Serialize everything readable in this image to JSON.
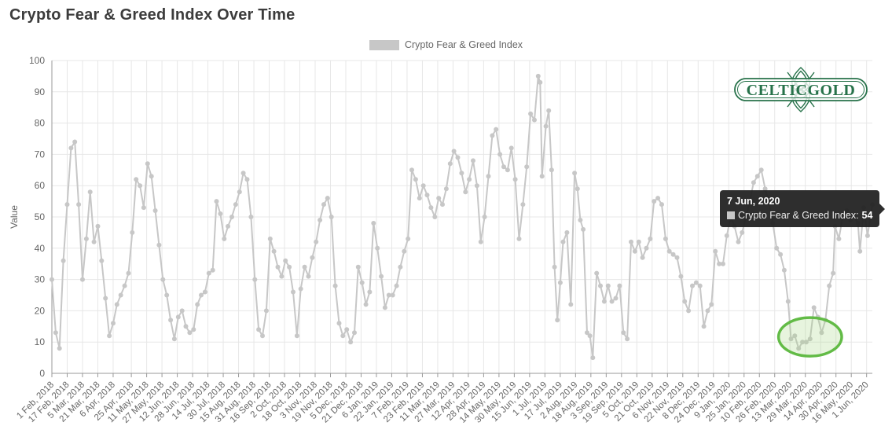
{
  "title": "Crypto Fear & Greed Index Over Time",
  "legend": {
    "label": "Crypto Fear & Greed Index"
  },
  "y_axis": {
    "title": "Value"
  },
  "tooltip": {
    "date": "7 Jun, 2020",
    "series_label": "Crypto Fear & Greed Index:",
    "value": "54"
  },
  "logo": {
    "text": "CELTICGOLD"
  },
  "colors": {
    "series": "#c7c7c7",
    "grid": "#e7e7e7",
    "axis": "#999999",
    "tick_label": "#666666",
    "title": "#3c3c3c",
    "logo_green": "#27724a",
    "annotation_stroke": "#62bb46",
    "annotation_fill": "rgba(170,214,136,0.28)",
    "tooltip_bg": "rgba(35,35,35,0.95)"
  },
  "chart_data": {
    "type": "line",
    "series_name": "Crypto Fear & Greed Index",
    "title": "Crypto Fear & Greed Index Over Time",
    "xlabel": "",
    "ylabel": "Value",
    "ylim": [
      0,
      100
    ],
    "y_ticks": [
      0,
      10,
      20,
      30,
      40,
      50,
      60,
      70,
      80,
      90,
      100
    ],
    "grid": true,
    "legend_position": "top-center",
    "marker": "circle",
    "sampling_note": "values estimated from pixels at ~4-day resolution; daily series in source",
    "x_range": [
      "2018-02-01",
      "2020-06-07"
    ],
    "x_tick_labels": [
      "1 Feb, 2018",
      "17 Feb, 2018",
      "5 Mar, 2018",
      "21 Mar, 2018",
      "6 Apr, 2018",
      "25 Apr, 2018",
      "11 May, 2018",
      "27 May, 2018",
      "12 Jun, 2018",
      "28 Jun, 2018",
      "14 Jul, 2018",
      "30 Jul, 2018",
      "15 Aug, 2018",
      "31 Aug, 2018",
      "16 Sep, 2018",
      "2 Oct, 2018",
      "18 Oct, 2018",
      "3 Nov, 2018",
      "19 Nov, 2018",
      "5 Dec, 2018",
      "21 Dec, 2018",
      "6 Jan, 2019",
      "22 Jan, 2019",
      "7 Feb, 2019",
      "23 Feb, 2019",
      "11 Mar, 2019",
      "27 Mar, 2019",
      "12 Apr, 2019",
      "28 Apr, 2019",
      "14 May, 2019",
      "30 May, 2019",
      "15 Jun, 2019",
      "1 Jul, 2019",
      "17 Jul, 2019",
      "2 Aug, 2019",
      "18 Aug, 2019",
      "3 Sep, 2019",
      "19 Sep, 2019",
      "5 Oct, 2019",
      "21 Oct, 2019",
      "6 Nov, 2019",
      "22 Nov, 2019",
      "8 Dec, 2019",
      "24 Dec, 2019",
      "9 Jan, 2020",
      "25 Jan, 2020",
      "10 Feb, 2020",
      "26 Feb, 2020",
      "13 Mar, 2020",
      "29 Mar, 2020",
      "14 Apr, 2020",
      "30 Apr, 2020",
      "16 May, 2020",
      "1 Jun, 2020"
    ],
    "dates": [
      "2018-02-01",
      "2018-02-05",
      "2018-02-09",
      "2018-02-13",
      "2018-02-17",
      "2018-02-21",
      "2018-02-25",
      "2018-03-01",
      "2018-03-05",
      "2018-03-09",
      "2018-03-13",
      "2018-03-17",
      "2018-03-21",
      "2018-03-25",
      "2018-03-29",
      "2018-04-02",
      "2018-04-06",
      "2018-04-10",
      "2018-04-14",
      "2018-04-18",
      "2018-04-22",
      "2018-04-26",
      "2018-04-30",
      "2018-05-04",
      "2018-05-08",
      "2018-05-12",
      "2018-05-16",
      "2018-05-20",
      "2018-05-24",
      "2018-05-28",
      "2018-06-01",
      "2018-06-05",
      "2018-06-09",
      "2018-06-13",
      "2018-06-17",
      "2018-06-21",
      "2018-06-25",
      "2018-06-29",
      "2018-07-03",
      "2018-07-07",
      "2018-07-11",
      "2018-07-15",
      "2018-07-19",
      "2018-07-23",
      "2018-07-27",
      "2018-07-31",
      "2018-08-04",
      "2018-08-08",
      "2018-08-12",
      "2018-08-16",
      "2018-08-20",
      "2018-08-24",
      "2018-08-28",
      "2018-09-01",
      "2018-09-05",
      "2018-09-09",
      "2018-09-13",
      "2018-09-17",
      "2018-09-21",
      "2018-09-25",
      "2018-09-29",
      "2018-10-03",
      "2018-10-07",
      "2018-10-11",
      "2018-10-15",
      "2018-10-19",
      "2018-10-23",
      "2018-10-27",
      "2018-10-31",
      "2018-11-04",
      "2018-11-08",
      "2018-11-12",
      "2018-11-16",
      "2018-11-20",
      "2018-11-24",
      "2018-11-28",
      "2018-12-02",
      "2018-12-06",
      "2018-12-10",
      "2018-12-14",
      "2018-12-18",
      "2018-12-22",
      "2018-12-26",
      "2018-12-30",
      "2019-01-03",
      "2019-01-07",
      "2019-01-11",
      "2019-01-15",
      "2019-01-19",
      "2019-01-23",
      "2019-01-27",
      "2019-01-31",
      "2019-02-04",
      "2019-02-08",
      "2019-02-12",
      "2019-02-16",
      "2019-02-20",
      "2019-02-24",
      "2019-02-28",
      "2019-03-04",
      "2019-03-08",
      "2019-03-12",
      "2019-03-16",
      "2019-03-20",
      "2019-03-24",
      "2019-03-28",
      "2019-04-01",
      "2019-04-05",
      "2019-04-09",
      "2019-04-13",
      "2019-04-17",
      "2019-04-21",
      "2019-04-25",
      "2019-04-29",
      "2019-05-03",
      "2019-05-07",
      "2019-05-11",
      "2019-05-15",
      "2019-05-19",
      "2019-05-23",
      "2019-05-27",
      "2019-05-31",
      "2019-06-04",
      "2019-06-08",
      "2019-06-12",
      "2019-06-16",
      "2019-06-20",
      "2019-06-24",
      "2019-06-26",
      "2019-06-28",
      "2019-07-02",
      "2019-07-05",
      "2019-07-08",
      "2019-07-11",
      "2019-07-14",
      "2019-07-17",
      "2019-07-20",
      "2019-07-24",
      "2019-07-28",
      "2019-08-01",
      "2019-08-04",
      "2019-08-07",
      "2019-08-10",
      "2019-08-14",
      "2019-08-17",
      "2019-08-20",
      "2019-08-24",
      "2019-08-28",
      "2019-09-01",
      "2019-09-05",
      "2019-09-09",
      "2019-09-13",
      "2019-09-17",
      "2019-09-21",
      "2019-09-25",
      "2019-09-29",
      "2019-10-03",
      "2019-10-07",
      "2019-10-11",
      "2019-10-15",
      "2019-10-19",
      "2019-10-23",
      "2019-10-27",
      "2019-10-31",
      "2019-11-04",
      "2019-11-08",
      "2019-11-12",
      "2019-11-16",
      "2019-11-20",
      "2019-11-24",
      "2019-11-28",
      "2019-12-02",
      "2019-12-06",
      "2019-12-10",
      "2019-12-14",
      "2019-12-18",
      "2019-12-22",
      "2019-12-26",
      "2019-12-30",
      "2020-01-03",
      "2020-01-07",
      "2020-01-11",
      "2020-01-15",
      "2020-01-19",
      "2020-01-23",
      "2020-01-27",
      "2020-01-31",
      "2020-02-04",
      "2020-02-08",
      "2020-02-12",
      "2020-02-16",
      "2020-02-20",
      "2020-02-24",
      "2020-02-28",
      "2020-03-03",
      "2020-03-07",
      "2020-03-11",
      "2020-03-14",
      "2020-03-18",
      "2020-03-22",
      "2020-03-26",
      "2020-03-30",
      "2020-04-03",
      "2020-04-07",
      "2020-04-11",
      "2020-04-15",
      "2020-04-19",
      "2020-04-23",
      "2020-04-27",
      "2020-04-29",
      "2020-05-03",
      "2020-05-07",
      "2020-05-11",
      "2020-05-15",
      "2020-05-19",
      "2020-05-23",
      "2020-05-25",
      "2020-05-29",
      "2020-06-02",
      "2020-06-07"
    ],
    "values": [
      30,
      13,
      8,
      36,
      54,
      72,
      74,
      54,
      30,
      43,
      58,
      42,
      47,
      36,
      24,
      12,
      16,
      22,
      25,
      28,
      32,
      45,
      62,
      60,
      53,
      67,
      63,
      52,
      41,
      30,
      25,
      17,
      11,
      18,
      20,
      15,
      13,
      14,
      22,
      25,
      26,
      32,
      33,
      55,
      51,
      43,
      47,
      50,
      54,
      58,
      64,
      62,
      50,
      30,
      14,
      12,
      20,
      43,
      39,
      34,
      31,
      36,
      34,
      26,
      12,
      27,
      34,
      31,
      37,
      42,
      49,
      54,
      56,
      50,
      28,
      16,
      12,
      14,
      10,
      13,
      34,
      29,
      22,
      26,
      48,
      40,
      31,
      21,
      25,
      25,
      28,
      34,
      39,
      43,
      65,
      62,
      56,
      60,
      57,
      53,
      50,
      56,
      54,
      59,
      67,
      71,
      69,
      64,
      58,
      62,
      68,
      60,
      42,
      50,
      63,
      76,
      78,
      70,
      66,
      65,
      72,
      62,
      43,
      54,
      66,
      83,
      81,
      95,
      93,
      63,
      79,
      84,
      65,
      34,
      17,
      29,
      42,
      45,
      22,
      64,
      59,
      49,
      46,
      13,
      12,
      5,
      32,
      28,
      23,
      28,
      23,
      24,
      28,
      13,
      11,
      42,
      39,
      42,
      37,
      40,
      43,
      55,
      56,
      54,
      43,
      39,
      38,
      37,
      31,
      23,
      20,
      28,
      29,
      28,
      15,
      20,
      22,
      39,
      35,
      35,
      44,
      50,
      47,
      42,
      45,
      50,
      55,
      61,
      63,
      65,
      59,
      55,
      48,
      40,
      38,
      33,
      23,
      11,
      12,
      8,
      10,
      10,
      11,
      21,
      18,
      13,
      17,
      28,
      32,
      47,
      43,
      50,
      52,
      49,
      50,
      48,
      39,
      53,
      44,
      54
    ],
    "annotation": {
      "shape": "ellipse",
      "purpose": "highlights the March-April 2020 low region",
      "date_range": [
        "2020-03-01",
        "2020-05-06"
      ],
      "value_range": [
        5.5,
        17.8
      ]
    }
  }
}
